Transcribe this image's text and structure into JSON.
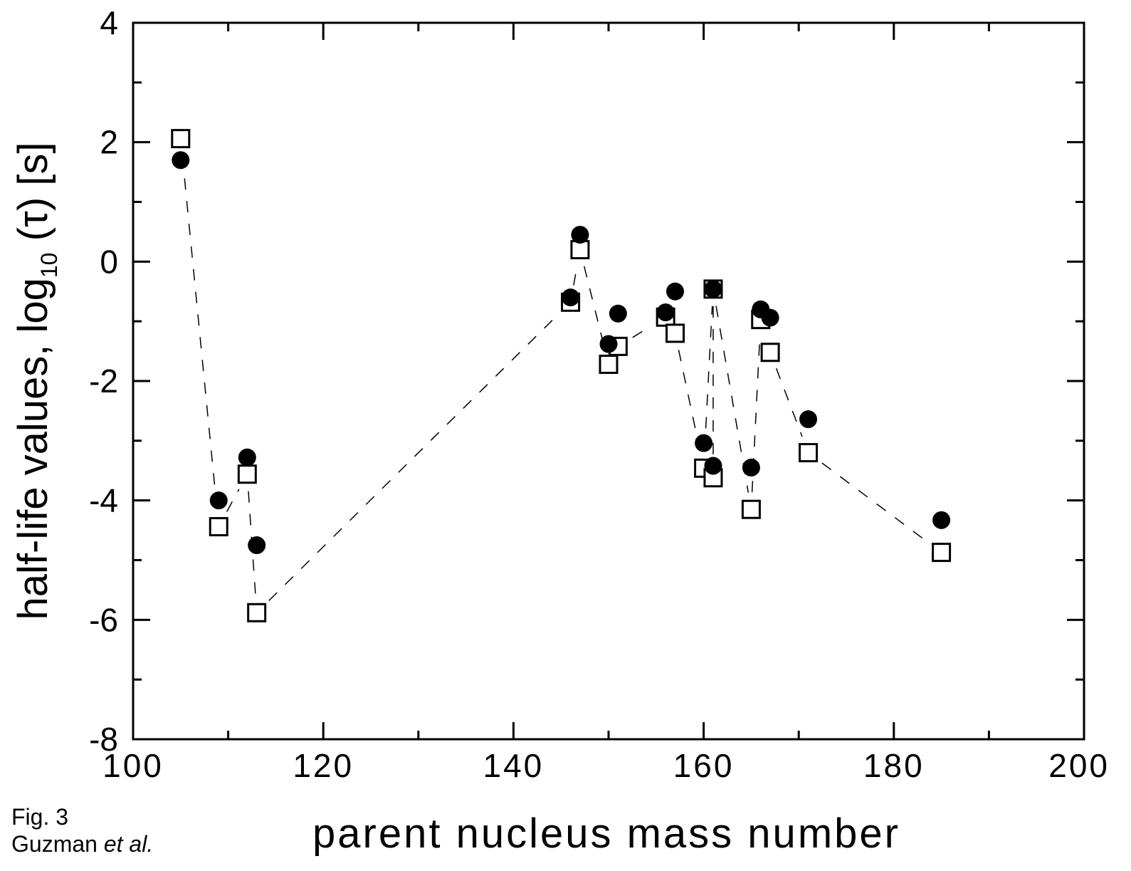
{
  "caption": {
    "figure": "Fig. 3",
    "authors": "Guzman",
    "etal": "et al."
  },
  "chart_data": {
    "type": "scatter",
    "xlabel": "parent nucleus mass number",
    "ylabel_main": "half-life values, log",
    "ylabel_sub": "10",
    "ylabel_tail": " (τ)  [s]",
    "xlim": [
      100,
      200
    ],
    "ylim": [
      -8,
      4
    ],
    "x_ticks": [
      "100",
      "120",
      "140",
      "160",
      "180",
      "200"
    ],
    "y_ticks": [
      "-8",
      "-6",
      "-4",
      "-2",
      "0",
      "2",
      "4"
    ],
    "grid": false,
    "series": [
      {
        "marker": "filled-circle",
        "points": [
          {
            "x": 105,
            "y": 1.7
          },
          {
            "x": 109,
            "y": -4.0
          },
          {
            "x": 112,
            "y": -3.28
          },
          {
            "x": 113,
            "y": -4.75
          },
          {
            "x": 146,
            "y": -0.6
          },
          {
            "x": 147,
            "y": 0.45
          },
          {
            "x": 150,
            "y": -1.38
          },
          {
            "x": 151,
            "y": -0.87
          },
          {
            "x": 156,
            "y": -0.85
          },
          {
            "x": 157,
            "y": -0.5
          },
          {
            "x": 160,
            "y": -3.04
          },
          {
            "x": 161,
            "y": -0.46
          },
          {
            "x": 161,
            "y": -3.42
          },
          {
            "x": 165,
            "y": -3.45
          },
          {
            "x": 166,
            "y": -0.8
          },
          {
            "x": 167,
            "y": -0.94
          },
          {
            "x": 171,
            "y": -2.64
          },
          {
            "x": 185,
            "y": -4.33
          }
        ]
      },
      {
        "marker": "open-square",
        "points": [
          {
            "x": 105,
            "y": 2.06
          },
          {
            "x": 109,
            "y": -4.44
          },
          {
            "x": 112,
            "y": -3.56
          },
          {
            "x": 113,
            "y": -5.88
          },
          {
            "x": 146,
            "y": -0.68
          },
          {
            "x": 147,
            "y": 0.2
          },
          {
            "x": 150,
            "y": -1.72
          },
          {
            "x": 151,
            "y": -1.42
          },
          {
            "x": 156,
            "y": -0.93
          },
          {
            "x": 157,
            "y": -1.2
          },
          {
            "x": 160,
            "y": -3.46
          },
          {
            "x": 161,
            "y": -0.46
          },
          {
            "x": 161,
            "y": -3.62
          },
          {
            "x": 165,
            "y": -4.15
          },
          {
            "x": 166,
            "y": -0.97
          },
          {
            "x": 167,
            "y": -1.52
          },
          {
            "x": 171,
            "y": -3.2
          },
          {
            "x": 185,
            "y": -4.87
          }
        ]
      }
    ],
    "connector": {
      "style": "dashed",
      "pairs": [
        [
          105,
          2.06,
          109,
          -4.44
        ],
        [
          109,
          -4.44,
          112,
          -3.56
        ],
        [
          112,
          -3.56,
          113,
          -5.88
        ],
        [
          113,
          -5.88,
          146,
          -0.68
        ],
        [
          146,
          -0.68,
          147,
          0.2
        ],
        [
          147,
          0.2,
          150,
          -1.72
        ],
        [
          150,
          -1.72,
          151,
          -1.42
        ],
        [
          151,
          -1.42,
          156,
          -0.93
        ],
        [
          156,
          -0.93,
          157,
          -1.2
        ],
        [
          157,
          -1.2,
          160,
          -3.46
        ],
        [
          160,
          -3.46,
          161,
          -0.46
        ],
        [
          161,
          -0.46,
          161,
          -3.62
        ],
        [
          161,
          -0.46,
          165,
          -4.15
        ],
        [
          165,
          -4.15,
          166,
          -0.97
        ],
        [
          166,
          -0.97,
          167,
          -1.52
        ],
        [
          167,
          -1.52,
          171,
          -3.2
        ],
        [
          171,
          -3.2,
          185,
          -4.87
        ]
      ]
    }
  }
}
